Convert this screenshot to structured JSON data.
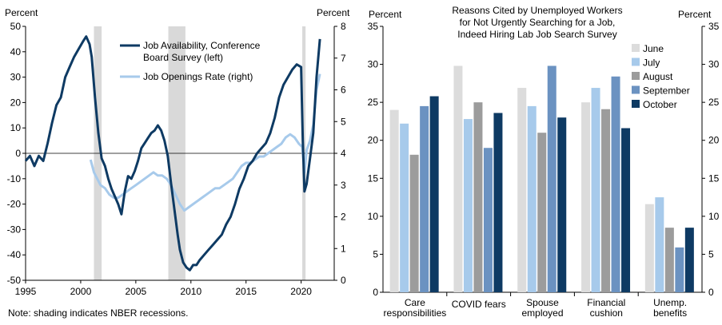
{
  "chart_data": [
    {
      "type": "line",
      "title": "",
      "left_axis_label": "Percent",
      "right_axis_label": "Percent",
      "left_ylim": [
        -50,
        50
      ],
      "right_ylim": [
        0,
        8
      ],
      "left_ticks": [
        "50",
        "40",
        "30",
        "20",
        "10",
        "0",
        "-10",
        "-20",
        "-30",
        "-40",
        "-50"
      ],
      "right_ticks": [
        "8",
        "7",
        "6",
        "5",
        "4",
        "3",
        "2",
        "1",
        "0"
      ],
      "x_ticks": [
        "1995",
        "2000",
        "2005",
        "2010",
        "2015",
        "2020"
      ],
      "x_range": [
        1995,
        2023
      ],
      "note": "Note: shading indicates NBER recessions.",
      "recessions": [
        [
          2001.2,
          2001.9
        ],
        [
          2007.95,
          2009.5
        ],
        [
          2020.1,
          2020.4
        ]
      ],
      "legend": [
        {
          "name": "Job Availability, Conference",
          "line2": "Board Survey (left)",
          "color": "#0e3a63"
        },
        {
          "name": "Job Openings Rate (right)",
          "line2": "",
          "color": "#a7caeb"
        }
      ],
      "series": [
        {
          "name": "Job Availability, Conference Board Survey (left)",
          "axis": "left",
          "color": "#0e3a63",
          "x": [
            1995.0,
            1995.4,
            1995.8,
            1996.2,
            1996.6,
            1997.0,
            1997.4,
            1997.8,
            1998.2,
            1998.6,
            1999.0,
            1999.4,
            1999.8,
            2000.2,
            2000.5,
            2000.8,
            2001.0,
            2001.3,
            2001.6,
            2001.9,
            2002.2,
            2002.5,
            2002.8,
            2003.1,
            2003.4,
            2003.7,
            2004.0,
            2004.3,
            2004.6,
            2004.9,
            2005.2,
            2005.5,
            2005.8,
            2006.1,
            2006.4,
            2006.7,
            2007.0,
            2007.3,
            2007.6,
            2007.9,
            2008.2,
            2008.5,
            2008.8,
            2009.0,
            2009.3,
            2009.6,
            2009.9,
            2010.2,
            2010.5,
            2010.8,
            2011.2,
            2011.6,
            2012.0,
            2012.4,
            2012.8,
            2013.2,
            2013.6,
            2014.0,
            2014.4,
            2014.8,
            2015.2,
            2015.6,
            2016.0,
            2016.4,
            2016.8,
            2017.2,
            2017.6,
            2018.0,
            2018.4,
            2018.8,
            2019.2,
            2019.6,
            2020.0,
            2020.15,
            2020.3,
            2020.5,
            2020.8,
            2021.1,
            2021.4,
            2021.7
          ],
          "values": [
            -3,
            -1,
            -5,
            -1,
            -3,
            4,
            12,
            19,
            22,
            30,
            34,
            38,
            41,
            44,
            46,
            43,
            38,
            22,
            8,
            -2,
            -5,
            -10,
            -14,
            -17,
            -20,
            -24,
            -15,
            -9,
            -10,
            -7,
            -3,
            2,
            4,
            6,
            8,
            9,
            11,
            9,
            5,
            -1,
            -12,
            -22,
            -32,
            -38,
            -43,
            -45,
            -46,
            -44,
            -44,
            -42,
            -40,
            -38,
            -36,
            -34,
            -32,
            -28,
            -25,
            -20,
            -14,
            -10,
            -5,
            -3,
            0,
            2,
            4,
            8,
            14,
            22,
            27,
            30,
            33,
            35,
            34,
            5,
            -15,
            -12,
            -2,
            8,
            30,
            45
          ]
        },
        {
          "name": "Job Openings Rate (right)",
          "axis": "right",
          "color": "#a7caeb",
          "x": [
            2000.9,
            2001.2,
            2001.5,
            2001.8,
            2002.2,
            2002.6,
            2003.0,
            2003.4,
            2003.8,
            2004.2,
            2004.6,
            2005.0,
            2005.4,
            2005.8,
            2006.2,
            2006.6,
            2007.0,
            2007.4,
            2007.8,
            2008.2,
            2008.6,
            2009.0,
            2009.4,
            2009.8,
            2010.2,
            2010.6,
            2011.0,
            2011.4,
            2011.8,
            2012.2,
            2012.6,
            2013.0,
            2013.4,
            2013.8,
            2014.2,
            2014.6,
            2015.0,
            2015.4,
            2015.8,
            2016.2,
            2016.6,
            2017.0,
            2017.4,
            2017.8,
            2018.2,
            2018.6,
            2019.0,
            2019.4,
            2019.8,
            2020.1,
            2020.3,
            2020.5,
            2020.8,
            2021.1,
            2021.4,
            2021.7
          ],
          "values": [
            3.8,
            3.4,
            3.2,
            3.0,
            2.9,
            2.7,
            2.6,
            2.6,
            2.7,
            2.8,
            2.9,
            3.0,
            3.1,
            3.2,
            3.3,
            3.4,
            3.3,
            3.3,
            3.2,
            3.0,
            2.7,
            2.4,
            2.2,
            2.3,
            2.4,
            2.5,
            2.6,
            2.7,
            2.8,
            2.9,
            2.9,
            3.0,
            3.1,
            3.2,
            3.4,
            3.6,
            3.7,
            3.7,
            3.8,
            3.9,
            3.9,
            4.0,
            4.1,
            4.2,
            4.3,
            4.5,
            4.6,
            4.5,
            4.3,
            4.2,
            3.4,
            4.1,
            4.4,
            4.9,
            6.0,
            6.5
          ]
        }
      ]
    },
    {
      "type": "bar",
      "title_lines": [
        "Reasons Cited by Unemployed Workers",
        "for Not Urgently Searching for a Job,",
        "Indeed Hiring Lab Job Search Survey"
      ],
      "left_axis_label": "Percent",
      "right_axis_label": "Percent",
      "ylim": [
        0,
        35
      ],
      "y_ticks": [
        "35",
        "30",
        "25",
        "20",
        "15",
        "10",
        "5",
        "0"
      ],
      "categories": [
        [
          "Care",
          "responsibilities"
        ],
        [
          "COVID fears"
        ],
        [
          "Spouse",
          "employed"
        ],
        [
          "Financial",
          "cushion"
        ],
        [
          "Unemp.",
          "benefits"
        ]
      ],
      "series": [
        {
          "name": "June",
          "color": "#dcdcdc",
          "values": [
            24.0,
            29.8,
            26.9,
            25.0,
            11.6
          ]
        },
        {
          "name": "July",
          "color": "#a7caeb",
          "values": [
            22.2,
            22.8,
            24.5,
            26.9,
            12.5
          ]
        },
        {
          "name": "August",
          "color": "#9c9c9c",
          "values": [
            18.1,
            25.0,
            21.0,
            24.1,
            8.5
          ]
        },
        {
          "name": "September",
          "color": "#6b92c1",
          "values": [
            24.5,
            19.0,
            29.8,
            28.4,
            5.9
          ]
        },
        {
          "name": "October",
          "color": "#0e3a63",
          "values": [
            25.8,
            23.6,
            23.0,
            21.6,
            8.5
          ]
        }
      ]
    }
  ]
}
